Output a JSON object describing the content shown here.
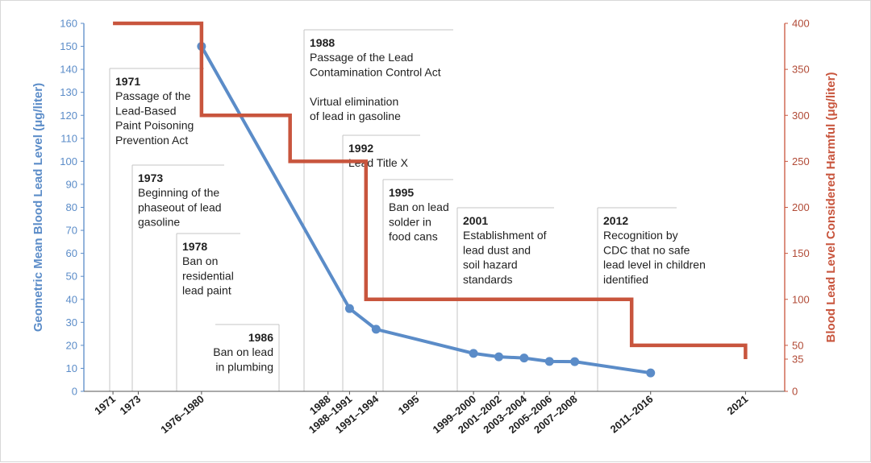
{
  "chart_data": {
    "type": "line",
    "title": "",
    "y_left": {
      "label": "Geometric Mean Blood Lead Level (μg/liter)",
      "lim": [
        0,
        160
      ],
      "ticks": [
        0,
        10,
        20,
        30,
        40,
        50,
        60,
        70,
        80,
        90,
        100,
        110,
        120,
        130,
        140,
        150,
        160
      ],
      "color": "#5b8cc8"
    },
    "y_right": {
      "label": "Blood Lead Level Considered Harmful (μg/liter)",
      "lim": [
        0,
        400
      ],
      "ticks": [
        0,
        35,
        50,
        100,
        150,
        200,
        250,
        300,
        350,
        400
      ],
      "color": "#c8553d"
    },
    "x_ticks": [
      {
        "label": "1971",
        "year": 1971
      },
      {
        "label": "1973",
        "year": 1973
      },
      {
        "label": "1976–1980",
        "year": 1978
      },
      {
        "label": "1988",
        "year": 1988
      },
      {
        "label": "1988–1991",
        "year": 1989.7
      },
      {
        "label": "1991–1994",
        "year": 1991.8
      },
      {
        "label": "1995",
        "year": 1995
      },
      {
        "label": "1999–2000",
        "year": 1999.5
      },
      {
        "label": "2001–2002",
        "year": 2001.5
      },
      {
        "label": "2003–2004",
        "year": 2003.5
      },
      {
        "label": "2005–2006",
        "year": 2005.5
      },
      {
        "label": "2007–2008",
        "year": 2007.5
      },
      {
        "label": "2011–2016",
        "year": 2013.5
      },
      {
        "label": "2021",
        "year": 2021
      }
    ],
    "series": [
      {
        "axis": "left",
        "color": "#5b8cc8",
        "points": [
          {
            "period": "1976–1980",
            "year": 1978,
            "value": 150
          },
          {
            "period": "1988–1991",
            "year": 1989.7,
            "value": 36
          },
          {
            "period": "1991–1994",
            "year": 1991.8,
            "value": 27
          },
          {
            "period": "1999–2000",
            "year": 1999.5,
            "value": 16.5
          },
          {
            "period": "2001–2002",
            "year": 2001.5,
            "value": 15
          },
          {
            "period": "2003–2004",
            "year": 2003.5,
            "value": 14.5
          },
          {
            "period": "2005–2006",
            "year": 2005.5,
            "value": 13
          },
          {
            "period": "2007–2008",
            "year": 2007.5,
            "value": 12.9
          },
          {
            "period": "2011–2016",
            "year": 2013.5,
            "value": 8
          }
        ]
      },
      {
        "axis": "right",
        "color": "#c8553d",
        "step": true,
        "points": [
          {
            "year": 1971,
            "value": 400
          },
          {
            "year": 1978,
            "value": 300
          },
          {
            "year": 1985,
            "value": 250
          },
          {
            "year": 1991,
            "value": 100
          },
          {
            "year": 2012,
            "value": 50
          },
          {
            "year": 2021,
            "value": 35
          }
        ]
      }
    ],
    "annotations": [
      {
        "year_label": "1971",
        "lines": [
          "Passage of the",
          "Lead-Based",
          "Paint Poisoning",
          "Prevention Act"
        ],
        "align": "left"
      },
      {
        "year_label": "1973",
        "lines": [
          "Beginning of the",
          "phaseout of lead",
          "gasoline"
        ],
        "align": "left"
      },
      {
        "year_label": "1978",
        "lines": [
          "Ban on",
          "residential",
          "lead paint"
        ],
        "align": "left"
      },
      {
        "year_label": "1986",
        "lines": [
          "Ban on lead",
          "in plumbing"
        ],
        "align": "right"
      },
      {
        "year_label": "1988",
        "lines": [
          "Passage of the Lead",
          "Contamination Control Act",
          "",
          "Virtual elimination",
          "of lead in gasoline"
        ],
        "align": "left"
      },
      {
        "year_label": "1992",
        "lines": [
          "Lead Title X"
        ],
        "align": "left"
      },
      {
        "year_label": "1995",
        "lines": [
          "Ban on lead",
          "solder in",
          "food cans"
        ],
        "align": "left"
      },
      {
        "year_label": "2001",
        "lines": [
          "Establishment of",
          "lead dust and",
          "soil hazard",
          "standards"
        ],
        "align": "left"
      },
      {
        "year_label": "2012",
        "lines": [
          "Recognition by",
          "CDC that no safe",
          "lead level in children",
          "identified"
        ],
        "align": "left"
      }
    ]
  }
}
